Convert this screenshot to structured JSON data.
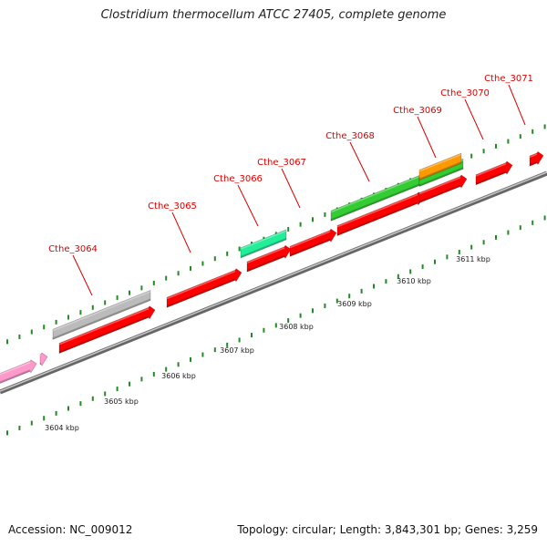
{
  "title": "Clostridium thermocellum ATCC 27405, complete genome",
  "footer": {
    "accession": "Accession: NC_009012",
    "stats": "Topology: circular; Length: 3,843,301 bp; Genes: 3,259"
  },
  "colors": {
    "backbone": "#8a8a8a",
    "tick": "#228b22",
    "gene_label": "#dd0000",
    "scale_label": "#222222",
    "red_gene": "#ff0000",
    "green_gene": "#33cc33",
    "teal_gene": "#22ee99",
    "orange_gene": "#ff9900",
    "gray_gene": "#bbbbbb",
    "pink_gene": "#ff99cc"
  },
  "scale_labels": [
    {
      "label": "3604 kbp"
    },
    {
      "label": "3605 kbp"
    },
    {
      "label": "3606 kbp"
    },
    {
      "label": "3607 kbp"
    },
    {
      "label": "3608 kbp"
    },
    {
      "label": "3609 kbp"
    },
    {
      "label": "3610 kbp"
    },
    {
      "label": "3611 kbp"
    }
  ],
  "gene_labels": [
    {
      "label": "Cthe_3064"
    },
    {
      "label": "Cthe_3065"
    },
    {
      "label": "Cthe_3066"
    },
    {
      "label": "Cthe_3067"
    },
    {
      "label": "Cthe_3068"
    },
    {
      "label": "Cthe_3069"
    },
    {
      "label": "Cthe_3070"
    },
    {
      "label": "Cthe_3071"
    }
  ]
}
